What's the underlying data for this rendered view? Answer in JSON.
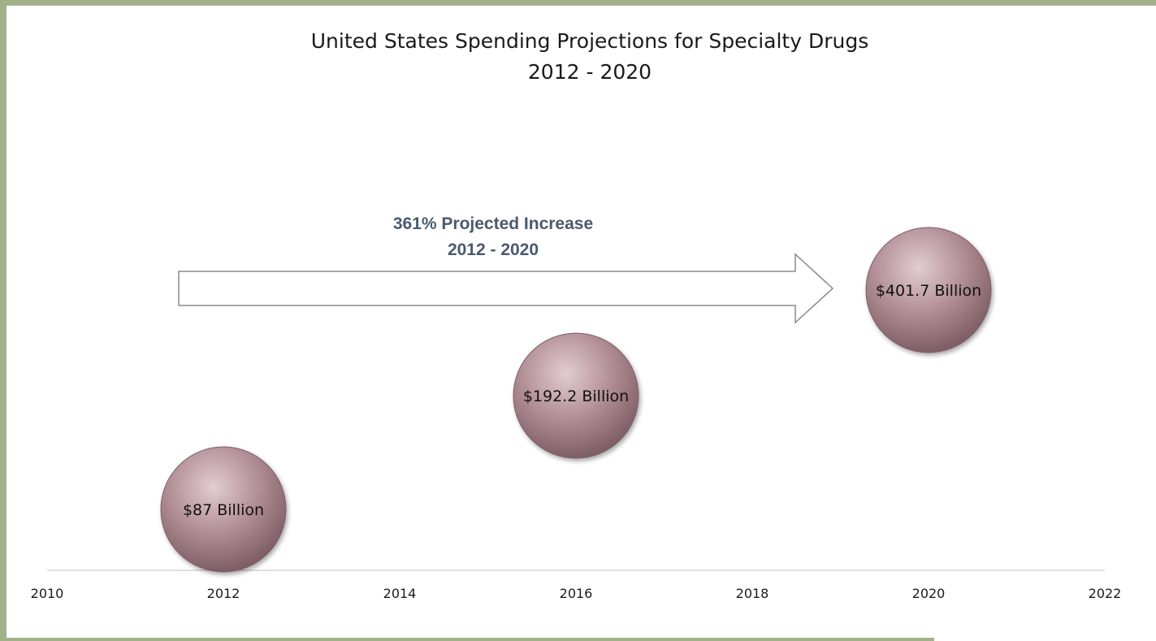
{
  "chart_data": {
    "type": "scatter",
    "title": "United States Spending Projections for Specialty Drugs",
    "subtitle": "2012 - 2020",
    "xlabel": "",
    "ylabel": "",
    "xlim": [
      2010,
      2022
    ],
    "x_ticks": [
      "2010",
      "2012",
      "2014",
      "2016",
      "2018",
      "2020",
      "2022"
    ],
    "grid": false,
    "points": [
      {
        "x": 2012,
        "value": 87,
        "label": "$87 Billion"
      },
      {
        "x": 2016,
        "value": 192.2,
        "label": "$192.2 Billion"
      },
      {
        "x": 2020,
        "value": 401.7,
        "label": "$401.7 Billion"
      }
    ],
    "annotation": {
      "line1": "361% Projected Increase",
      "line2": "2012 - 2020"
    },
    "colors": {
      "bubble": "#b08c94",
      "bubble_dark": "#7e5e66",
      "bubble_light": "#e2cdd1",
      "frame": "#a3b18a"
    }
  }
}
